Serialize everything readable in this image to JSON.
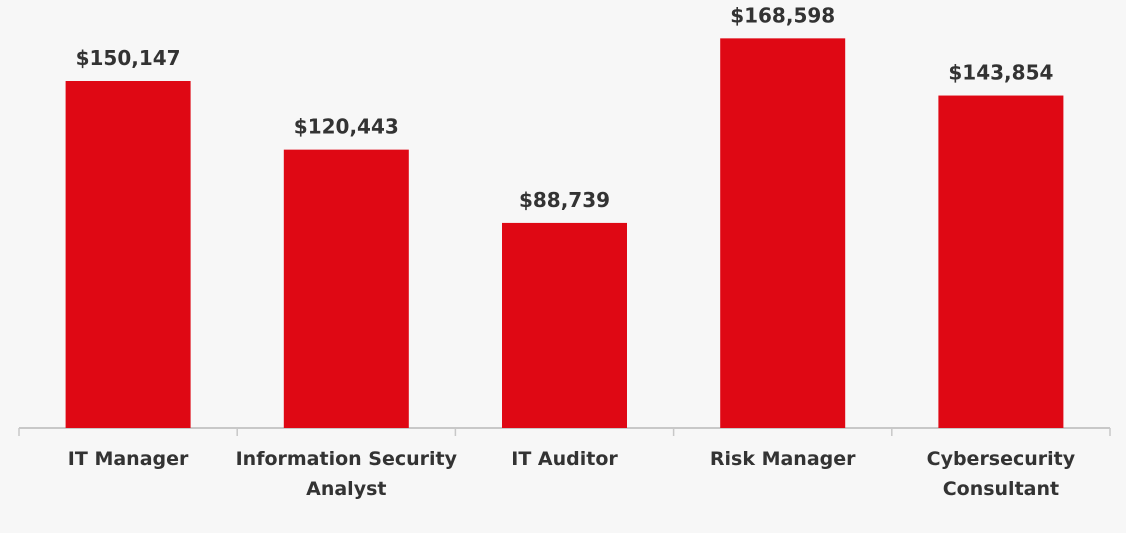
{
  "chart_data": {
    "type": "bar",
    "categories": [
      [
        "IT Manager"
      ],
      [
        "Information Security",
        "Analyst"
      ],
      [
        "IT Auditor"
      ],
      [
        "Risk Manager"
      ],
      [
        "Cybersecurity",
        "Consultant"
      ]
    ],
    "values": [
      150147,
      120443,
      88739,
      168598,
      143854
    ],
    "value_labels": [
      "$150,147",
      "$120,443",
      "$88,739",
      "$168,598",
      "$143,854"
    ],
    "ylim": [
      0,
      180000
    ],
    "grid": false,
    "legend": "none",
    "bar_color": "#df0814",
    "axis_color": "#c8c8c8",
    "text_color": "#333333",
    "background": "#f7f7f7"
  }
}
